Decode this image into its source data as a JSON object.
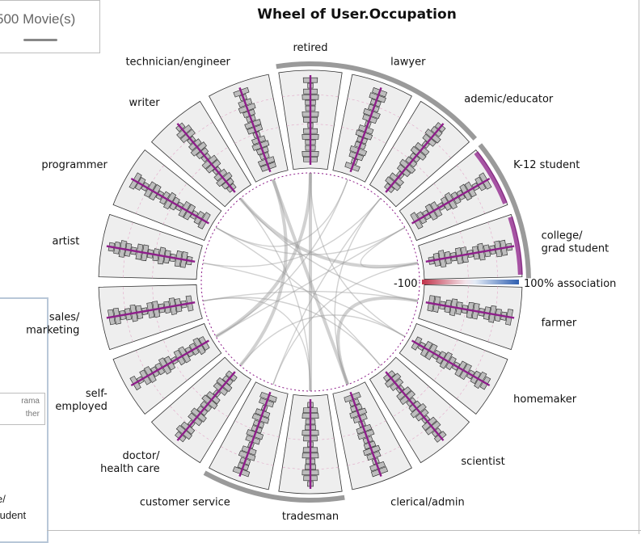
{
  "movies_box": {
    "label": "500 Movie(s)"
  },
  "side_panel": {
    "mini_legend": [
      "rama",
      "ther"
    ],
    "fragments": [
      "e/",
      "tudent"
    ]
  },
  "colors": {
    "accent": "#8e1e8a",
    "box_fill": "#eeeeee",
    "track": "#9a9a9a",
    "assoc_neg": "#c0334a",
    "assoc_pos": "#2f5fb0"
  },
  "chart_data": {
    "type": "radial-wheel",
    "title": "Wheel of User.Occupation",
    "sectors": [
      {
        "label": "retired"
      },
      {
        "label": "lawyer"
      },
      {
        "label": "ademic/educator"
      },
      {
        "label": "K-12 student"
      },
      {
        "label": "college/ grad student"
      },
      {
        "label": "farmer"
      },
      {
        "label": "homemaker"
      },
      {
        "label": "scientist"
      },
      {
        "label": "clerical/admin"
      },
      {
        "label": "tradesman"
      },
      {
        "label": "customer service"
      },
      {
        "label": "doctor/ health care"
      },
      {
        "label": "self- employed"
      },
      {
        "label": "sales/ marketing"
      },
      {
        "label": "artist"
      },
      {
        "label": "programmer"
      },
      {
        "label": "writer"
      },
      {
        "label": "technician/engineer"
      }
    ],
    "legend": {
      "min_label": "-100",
      "max_label": "100% association"
    },
    "outer_arcs": [
      {
        "start_sector": 0,
        "end_sector": 2
      },
      {
        "start_sector": 3,
        "end_sector": 4
      },
      {
        "start_sector": 9,
        "end_sector": 10
      }
    ],
    "highlighted_sectors": [
      3,
      4
    ]
  }
}
